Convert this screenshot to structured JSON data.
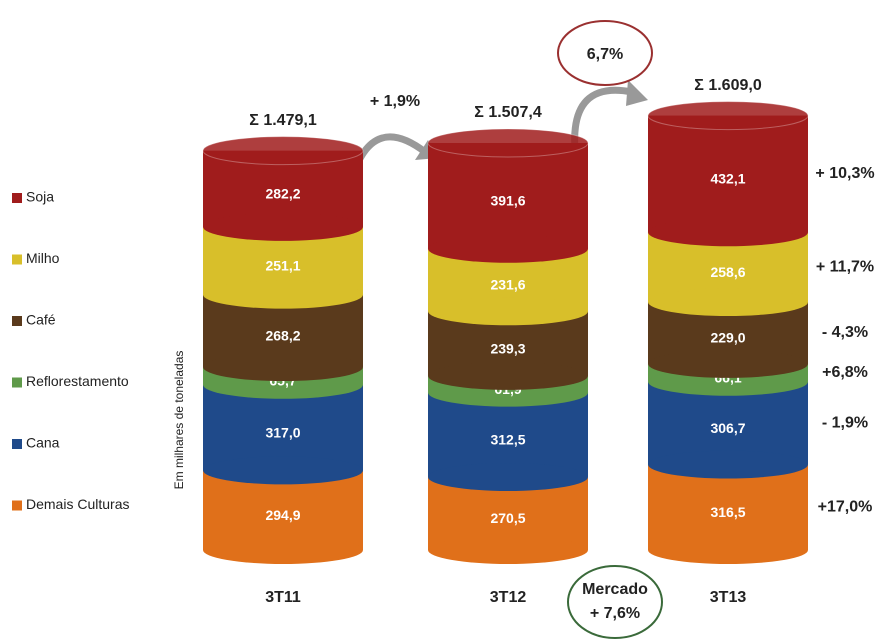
{
  "chart_data": {
    "type": "bar",
    "stacked": true,
    "y_label": "Em milhares de toneladas",
    "categories": [
      "3T11",
      "3T12",
      "3T13"
    ],
    "ylim": [
      0,
      2000
    ],
    "series": [
      {
        "name": "Demais Culturas",
        "color": "#e0701a",
        "values": [
          294.9,
          270.5,
          316.5
        ],
        "value_labels": [
          "294,9",
          "270,5",
          "316,5"
        ],
        "change": "+17,0%"
      },
      {
        "name": "Cana",
        "color": "#1f4a8a",
        "values": [
          317.0,
          312.5,
          306.7
        ],
        "value_labels": [
          "317,0",
          "312,5",
          "306,7"
        ],
        "change": "- 1,9%"
      },
      {
        "name": "Reflorestamento",
        "color": "#5f9a4a",
        "values": [
          65.7,
          61.9,
          66.1
        ],
        "value_labels": [
          "65,7",
          "61,9",
          "66,1"
        ],
        "change": "+6,8%"
      },
      {
        "name": "Café",
        "color": "#5a3a1c",
        "values": [
          268.2,
          239.3,
          229.0
        ],
        "value_labels": [
          "268,2",
          "239,3",
          "229,0"
        ],
        "change": "- 4,3%"
      },
      {
        "name": "Milho",
        "color": "#d8bf2a",
        "values": [
          251.1,
          231.6,
          258.6
        ],
        "value_labels": [
          "251,1",
          "231,6",
          "258,6"
        ],
        "change": "+ 11,7%"
      },
      {
        "name": "Soja",
        "color": "#a01c1c",
        "values": [
          282.2,
          391.6,
          432.1
        ],
        "value_labels": [
          "282,2",
          "391,6",
          "432,1"
        ],
        "change": "+ 10,3%"
      }
    ],
    "total_labels": [
      "Σ 1.479,1",
      "Σ 1.507,4",
      "Σ 1.609,0"
    ],
    "growth_labels": [
      "+ 1,9%",
      "6,7%"
    ],
    "market_label": "Mercado",
    "market_growth": "+ 7,6%"
  }
}
